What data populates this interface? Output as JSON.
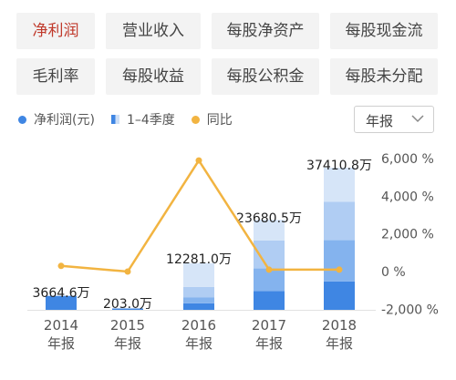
{
  "tabs": [
    {
      "label": "净利润",
      "active": true
    },
    {
      "label": "营业收入",
      "active": false
    },
    {
      "label": "每股净资产",
      "active": false
    },
    {
      "label": "每股现金流",
      "active": false
    },
    {
      "label": "毛利率",
      "active": false
    },
    {
      "label": "每股收益",
      "active": false
    },
    {
      "label": "每股公积金",
      "active": false
    },
    {
      "label": "每股未分配",
      "active": false
    }
  ],
  "legend": {
    "net_profit": "净利润(元)",
    "quarters": "1–4季度",
    "yoy": "同比"
  },
  "period_select": {
    "value": "年报"
  },
  "colors": {
    "accent": "#c0392b",
    "q_shades": [
      "#3f86e3",
      "#84b3ee",
      "#b0cdf3",
      "#d6e5f8"
    ],
    "line": "#f2b441",
    "legend_dot": "#3f86e3"
  },
  "chart_data": {
    "type": "bar",
    "categories": [
      "2014\n年报",
      "2015\n年报",
      "2016\n年报",
      "2017\n年报",
      "2018\n年报"
    ],
    "bar_labels": [
      "3664.6万",
      "203.0万",
      "12281.0万",
      "23680.5万",
      "37410.8万"
    ],
    "series": [
      {
        "name": "净利润(元)",
        "unit": "万",
        "values": [
          3664.6,
          203.0,
          12281.0,
          23680.5,
          37410.8
        ]
      },
      {
        "name": "同比",
        "unit": "%",
        "axis": "right",
        "values": [
          300,
          0,
          5900,
          100,
          100
        ]
      }
    ],
    "quarter_stack_fractions": [
      [
        1.0,
        0,
        0,
        0
      ],
      [
        1.0,
        0,
        0,
        0
      ],
      [
        0.14,
        0.13,
        0.22,
        0.51
      ],
      [
        0.21,
        0.25,
        0.31,
        0.23
      ],
      [
        0.2,
        0.29,
        0.27,
        0.24
      ]
    ],
    "right_axis": {
      "ticks": [
        6000,
        4000,
        2000,
        0,
        -2000
      ],
      "tick_labels": [
        "6,000 %",
        "4,000 %",
        "2,000 %",
        "0 %",
        "-2,000 %"
      ],
      "range": [
        -2000,
        6000
      ]
    }
  }
}
